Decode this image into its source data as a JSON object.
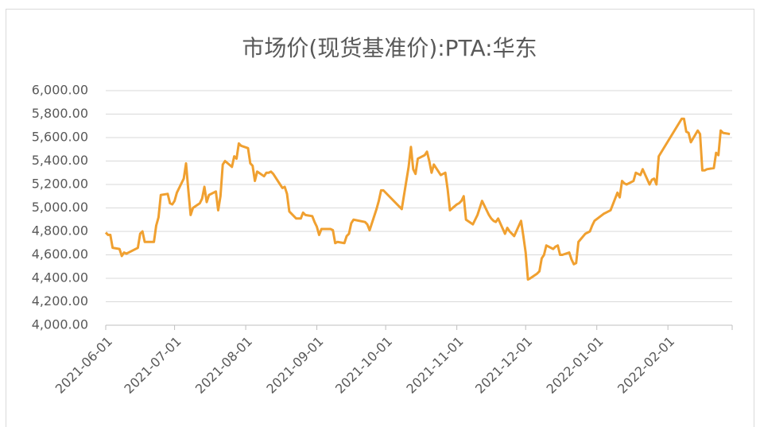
{
  "chart_data": {
    "type": "line",
    "title": "市场价(现货基准价):PTA:华东",
    "color": "#f0a030",
    "grid": true,
    "xlim": [
      "2021-06-01",
      "2022-03-01"
    ],
    "xticks": [
      "2021-06-01",
      "2021-07-01",
      "2021-08-01",
      "2021-09-01",
      "2021-10-01",
      "2021-11-01",
      "2021-12-01",
      "2022-01-01",
      "2022-02-01"
    ],
    "ylim": [
      4000,
      6000
    ],
    "yticks": [
      {
        "value": 4000,
        "label": "4,000.00"
      },
      {
        "value": 4200,
        "label": "4,200.00"
      },
      {
        "value": 4400,
        "label": "4,400.00"
      },
      {
        "value": 4600,
        "label": "4,600.00"
      },
      {
        "value": 4800,
        "label": "4,800.00"
      },
      {
        "value": 5000,
        "label": "5,000.00"
      },
      {
        "value": 5200,
        "label": "5,200.00"
      },
      {
        "value": 5400,
        "label": "5,400.00"
      },
      {
        "value": 5600,
        "label": "5,600.00"
      },
      {
        "value": 5800,
        "label": "5,800.00"
      },
      {
        "value": 6000,
        "label": "6,000.00"
      }
    ],
    "x": [
      "2021-06-01",
      "2021-06-02",
      "2021-06-03",
      "2021-06-04",
      "2021-06-07",
      "2021-06-08",
      "2021-06-09",
      "2021-06-10",
      "2021-06-11",
      "2021-06-15",
      "2021-06-16",
      "2021-06-17",
      "2021-06-18",
      "2021-06-21",
      "2021-06-22",
      "2021-06-23",
      "2021-06-24",
      "2021-06-25",
      "2021-06-28",
      "2021-06-29",
      "2021-06-30",
      "2021-07-01",
      "2021-07-02",
      "2021-07-05",
      "2021-07-06",
      "2021-07-07",
      "2021-07-08",
      "2021-07-09",
      "2021-07-12",
      "2021-07-13",
      "2021-07-14",
      "2021-07-15",
      "2021-07-16",
      "2021-07-19",
      "2021-07-20",
      "2021-07-21",
      "2021-07-22",
      "2021-07-23",
      "2021-07-26",
      "2021-07-27",
      "2021-07-28",
      "2021-07-29",
      "2021-07-30",
      "2021-08-02",
      "2021-08-03",
      "2021-08-04",
      "2021-08-05",
      "2021-08-06",
      "2021-08-09",
      "2021-08-10",
      "2021-08-11",
      "2021-08-12",
      "2021-08-13",
      "2021-08-16",
      "2021-08-17",
      "2021-08-18",
      "2021-08-19",
      "2021-08-20",
      "2021-08-23",
      "2021-08-24",
      "2021-08-25",
      "2021-08-26",
      "2021-08-27",
      "2021-08-30",
      "2021-08-31",
      "2021-09-01",
      "2021-09-02",
      "2021-09-03",
      "2021-09-06",
      "2021-09-07",
      "2021-09-08",
      "2021-09-09",
      "2021-09-10",
      "2021-09-13",
      "2021-09-14",
      "2021-09-15",
      "2021-09-16",
      "2021-09-17",
      "2021-09-22",
      "2021-09-23",
      "2021-09-24",
      "2021-09-27",
      "2021-09-28",
      "2021-09-29",
      "2021-09-30",
      "2021-10-08",
      "2021-10-11",
      "2021-10-12",
      "2021-10-13",
      "2021-10-14",
      "2021-10-15",
      "2021-10-18",
      "2021-10-19",
      "2021-10-20",
      "2021-10-21",
      "2021-10-22",
      "2021-10-25",
      "2021-10-26",
      "2021-10-27",
      "2021-10-28",
      "2021-10-29",
      "2021-11-01",
      "2021-11-02",
      "2021-11-03",
      "2021-11-04",
      "2021-11-05",
      "2021-11-08",
      "2021-11-09",
      "2021-11-10",
      "2021-11-11",
      "2021-11-12",
      "2021-11-15",
      "2021-11-16",
      "2021-11-17",
      "2021-11-18",
      "2021-11-19",
      "2021-11-22",
      "2021-11-23",
      "2021-11-24",
      "2021-11-25",
      "2021-11-26",
      "2021-11-29",
      "2021-11-30",
      "2021-12-01",
      "2021-12-02",
      "2021-12-03",
      "2021-12-06",
      "2021-12-07",
      "2021-12-08",
      "2021-12-09",
      "2021-12-10",
      "2021-12-13",
      "2021-12-14",
      "2021-12-15",
      "2021-12-16",
      "2021-12-17",
      "2021-12-20",
      "2021-12-21",
      "2021-12-22",
      "2021-12-23",
      "2021-12-24",
      "2021-12-27",
      "2021-12-28",
      "2021-12-29",
      "2021-12-30",
      "2021-12-31",
      "2022-01-04",
      "2022-01-05",
      "2022-01-06",
      "2022-01-07",
      "2022-01-10",
      "2022-01-11",
      "2022-01-12",
      "2022-01-13",
      "2022-01-14",
      "2022-01-17",
      "2022-01-18",
      "2022-01-19",
      "2022-01-20",
      "2022-01-21",
      "2022-01-24",
      "2022-01-25",
      "2022-01-26",
      "2022-01-27",
      "2022-01-28",
      "2022-02-07",
      "2022-02-08",
      "2022-02-09",
      "2022-02-10",
      "2022-02-11",
      "2022-02-14",
      "2022-02-15",
      "2022-02-16",
      "2022-02-17",
      "2022-02-18",
      "2022-02-21",
      "2022-02-22",
      "2022-02-23",
      "2022-02-24",
      "2022-02-25",
      "2022-02-28"
    ],
    "values": [
      4790,
      4770,
      4770,
      4660,
      4650,
      4590,
      4620,
      4610,
      4620,
      4660,
      4780,
      4800,
      4710,
      4710,
      4710,
      4850,
      4920,
      5110,
      5120,
      5040,
      5030,
      5060,
      5130,
      5250,
      5380,
      5150,
      4940,
      5000,
      5040,
      5080,
      5180,
      5050,
      5110,
      5140,
      4980,
      5100,
      5370,
      5400,
      5350,
      5440,
      5420,
      5550,
      5530,
      5510,
      5380,
      5360,
      5230,
      5310,
      5270,
      5300,
      5300,
      5310,
      5290,
      5200,
      5170,
      5180,
      5120,
      4970,
      4910,
      4910,
      4910,
      4960,
      4940,
      4930,
      4880,
      4840,
      4770,
      4820,
      4820,
      4820,
      4810,
      4700,
      4710,
      4700,
      4760,
      4780,
      4870,
      4900,
      4880,
      4860,
      4810,
      4990,
      5060,
      5150,
      5150,
      4990,
      5350,
      5520,
      5330,
      5290,
      5420,
      5450,
      5480,
      5400,
      5300,
      5370,
      5280,
      5290,
      5300,
      5160,
      4980,
      5030,
      5040,
      5060,
      5100,
      4900,
      4860,
      4900,
      4940,
      5000,
      5060,
      4940,
      4910,
      4890,
      4880,
      4910,
      4780,
      4830,
      4800,
      4780,
      4760,
      4890,
      4760,
      4620,
      4390,
      4400,
      4440,
      4460,
      4570,
      4600,
      4680,
      4650,
      4670,
      4680,
      4600,
      4600,
      4620,
      4560,
      4520,
      4530,
      4710,
      4780,
      4790,
      4800,
      4850,
      4890,
      4950,
      4960,
      4970,
      4980,
      5130,
      5090,
      5230,
      5210,
      5200,
      5230,
      5300,
      5290,
      5280,
      5330,
      5200,
      5240,
      5250,
      5200,
      5440,
      5760,
      5760,
      5650,
      5640,
      5560,
      5660,
      5630,
      5320,
      5320,
      5330,
      5340,
      5470,
      5450,
      5660,
      5640,
      5630
    ]
  }
}
